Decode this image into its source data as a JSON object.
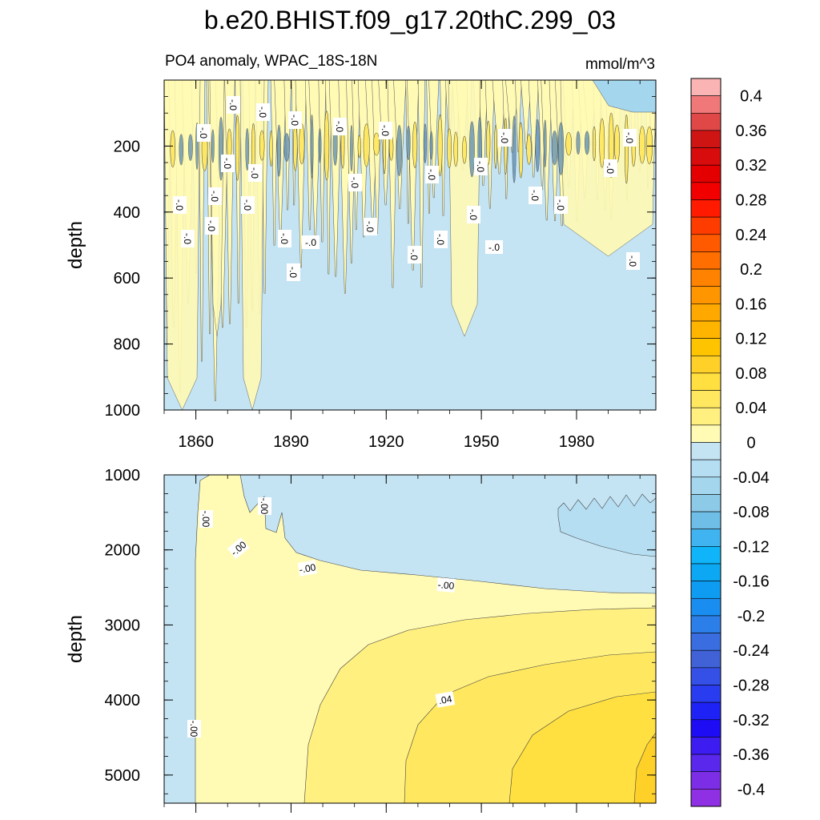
{
  "title": "b.e20.BHIST.f09_g17.20thC.299_03",
  "chart_data": {
    "type": "heatmap",
    "variable": "PO4 anomaly, WPAC_18S-18N",
    "units": "mmol/m^3",
    "x": {
      "label": "",
      "range": [
        1850,
        2005
      ],
      "ticks": [
        1860,
        1890,
        1920,
        1950,
        1980
      ],
      "tick_labels": [
        "1860",
        "1890",
        "1920",
        "1950",
        "1980"
      ]
    },
    "panels": [
      {
        "name": "upper",
        "ylabel": "depth",
        "ylim": [
          0,
          1000
        ],
        "yticks": [
          200,
          400,
          600,
          800,
          1000
        ],
        "ytick_labels": [
          "200",
          "400",
          "600",
          "800",
          "1000"
        ],
        "contour_labels": [
          "-.0",
          "-.0",
          "-.0",
          "-.0",
          "-.0",
          "-.0",
          "-.0",
          "-.0",
          "-.0",
          "-.0",
          "-.0",
          "-.0",
          "-.0",
          "-.0",
          "-.0",
          "-.0",
          "-.0",
          "-.0",
          "-.0",
          "-.0",
          "-.0",
          "-.0",
          "-.0",
          "-.0",
          "-.0",
          "-.0",
          "-.0",
          "-.0",
          "-.0",
          "-.0"
        ]
      },
      {
        "name": "lower",
        "ylabel": "depth",
        "ylim": [
          1000,
          5375
        ],
        "yticks": [
          1000,
          2000,
          3000,
          4000,
          5000
        ],
        "ytick_labels": [
          "1000",
          "2000",
          "3000",
          "4000",
          "5000"
        ],
        "contour_labels": [
          "-.00",
          "-.00",
          "-.00",
          "-.00",
          "-.00",
          ".04",
          "-.00"
        ]
      }
    ],
    "colorbar": {
      "min": -0.42,
      "max": 0.42,
      "step": 0.02,
      "tick_labels": [
        "0.4",
        "0.36",
        "0.32",
        "0.28",
        "0.24",
        "0.2",
        "0.16",
        "0.12",
        "0.08",
        "0.04",
        "0",
        "-0.04",
        "-0.08",
        "-0.12",
        "-0.16",
        "-0.2",
        "-0.24",
        "-0.28",
        "-0.32",
        "-0.36",
        "-0.4"
      ],
      "colors_top_to_bottom": [
        "#fbb4b4",
        "#f07878",
        "#e04848",
        "#cf1414",
        "#d80c0c",
        "#e40000",
        "#f20000",
        "#ff1a00",
        "#ff3c00",
        "#ff5a00",
        "#ff6e00",
        "#ff8200",
        "#ff9600",
        "#ffa800",
        "#ffb400",
        "#ffc400",
        "#ffd028",
        "#ffe040",
        "#ffe860",
        "#fff080",
        "#fffab4",
        "#c4e4f4",
        "#b6def2",
        "#a4d6ee",
        "#8ccae8",
        "#6ebee8",
        "#40b4f0",
        "#10b4f8",
        "#0ca8f4",
        "#0e9cf2",
        "#1a8ef0",
        "#2c7ee8",
        "#3a6ee0",
        "#4062d6",
        "#3450e6",
        "#2a3cf0",
        "#1e22f4",
        "#1e0cf4",
        "#3c1cf0",
        "#5a28ec",
        "#7c2ee6",
        "#9030e4"
      ]
    }
  }
}
